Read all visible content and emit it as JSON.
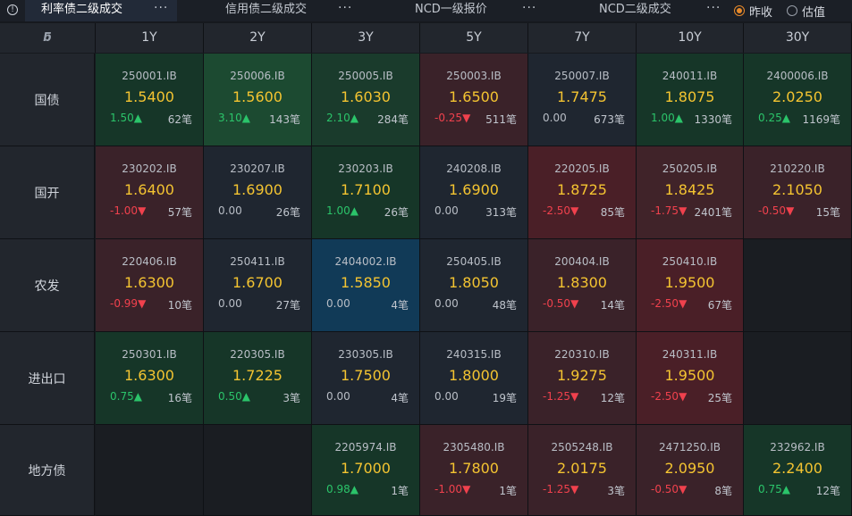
{
  "tabs": [
    {
      "label": "利率债二级成交",
      "active": true
    },
    {
      "label": "信用债二级成交",
      "active": false
    },
    {
      "label": "NCD一级报价",
      "active": false
    },
    {
      "label": "NCD二级成交",
      "active": false
    }
  ],
  "more_glyph": "···",
  "info_glyph": "!",
  "corner_glyph": "ƃ",
  "radios": [
    {
      "label": "昨收",
      "checked": true
    },
    {
      "label": "估值",
      "checked": false
    }
  ],
  "columns": [
    "1Y",
    "2Y",
    "3Y",
    "5Y",
    "7Y",
    "10Y",
    "30Y"
  ],
  "rows": [
    {
      "label": "国债",
      "cells": [
        {
          "code": "250001.IB",
          "yield": "1.5400",
          "change": "1.50",
          "dir": "up",
          "count": "62笔",
          "tone": "g1"
        },
        {
          "code": "250006.IB",
          "yield": "1.5600",
          "change": "3.10",
          "dir": "up",
          "count": "143笔",
          "tone": "g2"
        },
        {
          "code": "250005.IB",
          "yield": "1.6030",
          "change": "2.10",
          "dir": "up",
          "count": "284笔",
          "tone": "g3"
        },
        {
          "code": "250003.IB",
          "yield": "1.6500",
          "change": "-0.25",
          "dir": "down",
          "count": "511笔",
          "tone": "r1"
        },
        {
          "code": "250007.IB",
          "yield": "1.7475",
          "change": "0.00",
          "dir": "flat",
          "count": "673笔",
          "tone": "n"
        },
        {
          "code": "240011.IB",
          "yield": "1.8075",
          "change": "1.00",
          "dir": "up",
          "count": "1330笔",
          "tone": "g1"
        },
        {
          "code": "2400006.IB",
          "yield": "2.0250",
          "change": "0.25",
          "dir": "up",
          "count": "1169笔",
          "tone": "g1"
        }
      ]
    },
    {
      "label": "国开",
      "cells": [
        {
          "code": "230202.IB",
          "yield": "1.6400",
          "change": "-1.00",
          "dir": "down",
          "count": "57笔",
          "tone": "r1"
        },
        {
          "code": "230207.IB",
          "yield": "1.6900",
          "change": "0.00",
          "dir": "flat",
          "count": "26笔",
          "tone": "n"
        },
        {
          "code": "230203.IB",
          "yield": "1.7100",
          "change": "1.00",
          "dir": "up",
          "count": "26笔",
          "tone": "g1"
        },
        {
          "code": "240208.IB",
          "yield": "1.6900",
          "change": "0.00",
          "dir": "flat",
          "count": "313笔",
          "tone": "n"
        },
        {
          "code": "220205.IB",
          "yield": "1.8725",
          "change": "-2.50",
          "dir": "down",
          "count": "85笔",
          "tone": "r2"
        },
        {
          "code": "250205.IB",
          "yield": "1.8425",
          "change": "-1.75",
          "dir": "down",
          "count": "2401笔",
          "tone": "r3"
        },
        {
          "code": "210220.IB",
          "yield": "2.1050",
          "change": "-0.50",
          "dir": "down",
          "count": "15笔",
          "tone": "r1"
        }
      ]
    },
    {
      "label": "农发",
      "cells": [
        {
          "code": "220406.IB",
          "yield": "1.6300",
          "change": "-0.99",
          "dir": "down",
          "count": "10笔",
          "tone": "r1"
        },
        {
          "code": "250411.IB",
          "yield": "1.6700",
          "change": "0.00",
          "dir": "flat",
          "count": "27笔",
          "tone": "n"
        },
        {
          "code": "2404002.IB",
          "yield": "1.5850",
          "change": "0.00",
          "dir": "flat",
          "count": "4笔",
          "tone": "b"
        },
        {
          "code": "250405.IB",
          "yield": "1.8050",
          "change": "0.00",
          "dir": "flat",
          "count": "48笔",
          "tone": "n"
        },
        {
          "code": "200404.IB",
          "yield": "1.8300",
          "change": "-0.50",
          "dir": "down",
          "count": "14笔",
          "tone": "r1"
        },
        {
          "code": "250410.IB",
          "yield": "1.9500",
          "change": "-2.50",
          "dir": "down",
          "count": "67笔",
          "tone": "r2"
        },
        null
      ]
    },
    {
      "label": "进出口",
      "cells": [
        {
          "code": "250301.IB",
          "yield": "1.6300",
          "change": "0.75",
          "dir": "up",
          "count": "16笔",
          "tone": "g1"
        },
        {
          "code": "220305.IB",
          "yield": "1.7225",
          "change": "0.50",
          "dir": "up",
          "count": "3笔",
          "tone": "g1"
        },
        {
          "code": "230305.IB",
          "yield": "1.7500",
          "change": "0.00",
          "dir": "flat",
          "count": "4笔",
          "tone": "n"
        },
        {
          "code": "240315.IB",
          "yield": "1.8000",
          "change": "0.00",
          "dir": "flat",
          "count": "19笔",
          "tone": "n"
        },
        {
          "code": "220310.IB",
          "yield": "1.9275",
          "change": "-1.25",
          "dir": "down",
          "count": "12笔",
          "tone": "r1"
        },
        {
          "code": "240311.IB",
          "yield": "1.9500",
          "change": "-2.50",
          "dir": "down",
          "count": "25笔",
          "tone": "r2"
        },
        null
      ]
    },
    {
      "label": "地方债",
      "cells": [
        null,
        null,
        {
          "code": "2205974.IB",
          "yield": "1.7000",
          "change": "0.98",
          "dir": "up",
          "count": "1笔",
          "tone": "g1"
        },
        {
          "code": "2305480.IB",
          "yield": "1.7800",
          "change": "-1.00",
          "dir": "down",
          "count": "1笔",
          "tone": "r1"
        },
        {
          "code": "2505248.IB",
          "yield": "2.0175",
          "change": "-1.25",
          "dir": "down",
          "count": "3笔",
          "tone": "r1"
        },
        {
          "code": "2471250.IB",
          "yield": "2.0950",
          "change": "-0.50",
          "dir": "down",
          "count": "8笔",
          "tone": "r1"
        },
        {
          "code": "232962.IB",
          "yield": "2.2400",
          "change": "0.75",
          "dir": "up",
          "count": "12笔",
          "tone": "g1"
        }
      ]
    }
  ]
}
